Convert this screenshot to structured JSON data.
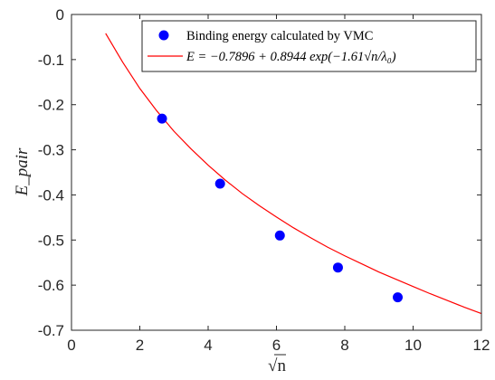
{
  "chart_data": {
    "type": "scatter",
    "title": "",
    "xlabel": "√n",
    "ylabel": "E_pair",
    "xlim": [
      0,
      12
    ],
    "ylim": [
      -0.7,
      0
    ],
    "xticks": [
      0,
      2,
      4,
      6,
      8,
      10,
      12
    ],
    "yticks": [
      0,
      -0.1,
      -0.2,
      -0.3,
      -0.4,
      -0.5,
      -0.6,
      -0.7
    ],
    "xtick_labels": [
      "0",
      "2",
      "4",
      "6",
      "8",
      "10",
      "12"
    ],
    "ytick_labels": [
      "0",
      "-0.1",
      "-0.2",
      "-0.3",
      "-0.4",
      "-0.5",
      "-0.6",
      "-0.7"
    ],
    "grid": false,
    "legend_position": "top-right",
    "series": [
      {
        "name": "Binding energy calculated by VMC",
        "kind": "scatter",
        "color": "#0000ff",
        "x": [
          2.65,
          4.35,
          6.1,
          7.8,
          9.55
        ],
        "y": [
          -0.231,
          -0.375,
          -0.49,
          -0.561,
          -0.627
        ]
      },
      {
        "name": "E = −0.7896 + 0.8944 exp(−1.61√n/λ₀)",
        "kind": "line",
        "color": "#ff0000",
        "x": [
          1.0,
          1.5,
          2.0,
          2.5,
          3.0,
          3.5,
          4.0,
          4.5,
          5.0,
          5.5,
          6.0,
          6.5,
          7.0,
          7.5,
          8.0,
          8.5,
          9.0,
          9.5,
          10.0,
          10.5,
          11.0,
          11.5,
          12.0
        ],
        "y": [
          -0.042,
          -0.106,
          -0.164,
          -0.214,
          -0.259,
          -0.298,
          -0.334,
          -0.367,
          -0.397,
          -0.424,
          -0.449,
          -0.473,
          -0.495,
          -0.516,
          -0.535,
          -0.553,
          -0.571,
          -0.587,
          -0.603,
          -0.619,
          -0.634,
          -0.649,
          -0.663
        ]
      }
    ]
  }
}
